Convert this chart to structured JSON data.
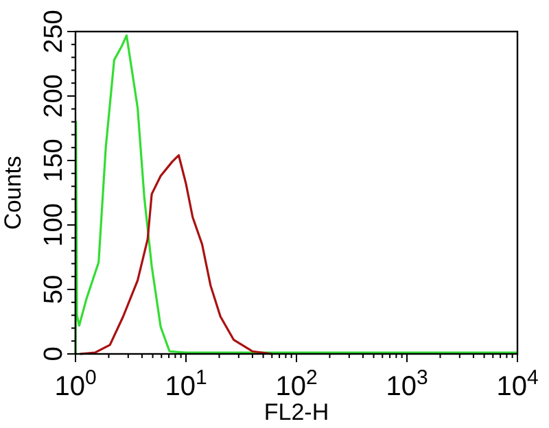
{
  "chart_data": {
    "type": "line",
    "xlabel": "FL2-H",
    "ylabel": "Counts",
    "log": "x",
    "grid": false,
    "line_style": "solid",
    "xlim": [
      1,
      10000
    ],
    "xticks": [
      {
        "value": 1,
        "label": "10$^{0}$"
      },
      {
        "value": 2,
        "label": null
      },
      {
        "value": 3,
        "label": null
      },
      {
        "value": 4,
        "label": null
      },
      {
        "value": 5,
        "label": null
      },
      {
        "value": 6,
        "label": null
      },
      {
        "value": 7,
        "label": null
      },
      {
        "value": 8,
        "label": null
      },
      {
        "value": 9,
        "label": null
      },
      {
        "value": 10,
        "label": "10$^{1}$"
      },
      {
        "value": 20,
        "label": null
      },
      {
        "value": 30,
        "label": null
      },
      {
        "value": 40,
        "label": null
      },
      {
        "value": 50,
        "label": null
      },
      {
        "value": 60,
        "label": null
      },
      {
        "value": 70,
        "label": null
      },
      {
        "value": 80,
        "label": null
      },
      {
        "value": 90,
        "label": null
      },
      {
        "value": 100,
        "label": "10$^{2}$"
      },
      {
        "value": 200,
        "label": null
      },
      {
        "value": 300,
        "label": null
      },
      {
        "value": 400,
        "label": null
      },
      {
        "value": 500,
        "label": null
      },
      {
        "value": 600,
        "label": null
      },
      {
        "value": 700,
        "label": null
      },
      {
        "value": 800,
        "label": null
      },
      {
        "value": 900,
        "label": null
      },
      {
        "value": 1000,
        "label": "10$^{3}$"
      },
      {
        "value": 2000,
        "label": null
      },
      {
        "value": 3000,
        "label": null
      },
      {
        "value": 4000,
        "label": null
      },
      {
        "value": 5000,
        "label": null
      },
      {
        "value": 6000,
        "label": null
      },
      {
        "value": 7000,
        "label": null
      },
      {
        "value": 8000,
        "label": null
      },
      {
        "value": 9000,
        "label": null
      },
      {
        "value": 10000,
        "label": "10$^{4}$"
      }
    ],
    "ylim": [
      0,
      250
    ],
    "yticks": [
      0,
      {
        "value": 10,
        "label": null
      },
      {
        "value": 20,
        "label": null
      },
      {
        "value": 30,
        "label": null
      },
      {
        "value": 40,
        "label": null
      },
      50,
      {
        "value": 60,
        "label": null
      },
      {
        "value": 70,
        "label": null
      },
      {
        "value": 80,
        "label": null
      },
      {
        "value": 90,
        "label": null
      },
      100,
      {
        "value": 110,
        "label": null
      },
      {
        "value": 120,
        "label": null
      },
      {
        "value": 130,
        "label": null
      },
      {
        "value": 140,
        "label": null
      },
      150,
      {
        "value": 160,
        "label": null
      },
      {
        "value": 170,
        "label": null
      },
      {
        "value": 180,
        "label": null
      },
      {
        "value": 190,
        "label": null
      },
      200,
      {
        "value": 210,
        "label": null
      },
      {
        "value": 220,
        "label": null
      },
      {
        "value": 230,
        "label": null
      },
      {
        "value": 240,
        "label": null
      },
      250
    ],
    "series": [
      {
        "color": "#33dd33",
        "x": [
          1,
          1.01,
          1.03,
          1.08,
          1.26,
          1.62,
          1.88,
          2.24,
          2.6,
          2.9,
          3.2,
          3.65,
          4.2,
          4.9,
          5.9,
          7.1,
          10,
          30,
          100,
          1000,
          10000
        ],
        "values": [
          0,
          180,
          30,
          22,
          43,
          71,
          160,
          228,
          238,
          247,
          223,
          191,
          121,
          68,
          21,
          2,
          1,
          1,
          1,
          1,
          1
        ]
      },
      {
        "color": "#aa1111",
        "x": [
          1.1,
          1.5,
          2.05,
          2.7,
          3.65,
          4.5,
          4.9,
          5.9,
          7.5,
          8.6,
          10,
          11.5,
          14,
          16.7,
          20.5,
          27,
          40,
          60
        ],
        "values": [
          0,
          1,
          7,
          29,
          57,
          89,
          124,
          138,
          149,
          154,
          132,
          106,
          85,
          53,
          29,
          11,
          2,
          0
        ]
      }
    ]
  }
}
